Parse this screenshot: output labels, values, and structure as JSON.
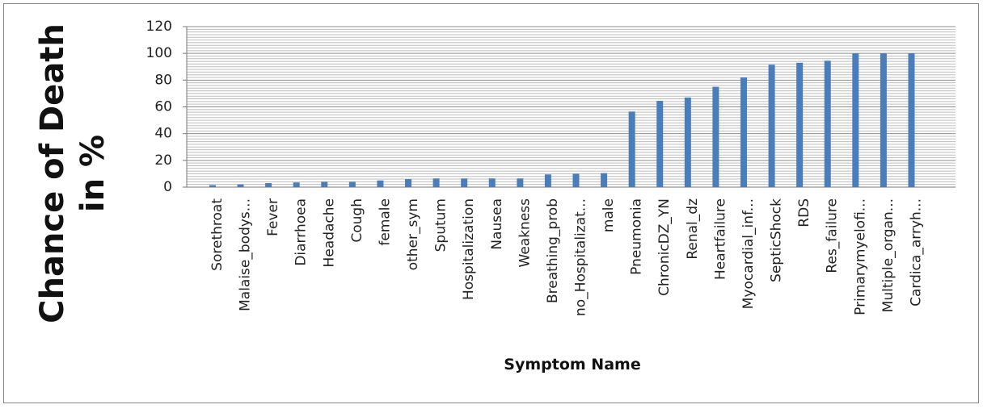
{
  "chart_data": {
    "type": "bar",
    "y_label": [
      "Chance of Death",
      "in %"
    ],
    "x_label": "Symptom Name",
    "categories": [
      "Sorethroat",
      "Malaise_bodys...",
      "Fever",
      "Diarrhoea",
      "Headache",
      "Cough",
      "female",
      "other_sym",
      "Sputum",
      "Hospitalization",
      "Nausea",
      "Weakness",
      "Breathing_prob",
      "no_Hospitalizat...",
      "male",
      "Pneumonia",
      "ChronicDZ_YN",
      "Renal_dz",
      "Heartfailure",
      "Myocardial_inf...",
      "SepticShock",
      "RDS",
      "Res_failure",
      "Primarymyelofi...",
      "Multiple_organ...",
      "Cardica_arryh..."
    ],
    "values": [
      1.5,
      2,
      3,
      3.5,
      4,
      4,
      5,
      6,
      6.5,
      6.5,
      6.5,
      6.5,
      9.5,
      10,
      10.5,
      56.5,
      64.5,
      67,
      75,
      82,
      91.5,
      93,
      94.5,
      100,
      100,
      100
    ],
    "color": "#4a7ebb",
    "ylim": [
      0,
      120
    ],
    "yticks": [
      0,
      20,
      40,
      60,
      80,
      100,
      120
    ],
    "grid": true,
    "minor_grid": true
  }
}
